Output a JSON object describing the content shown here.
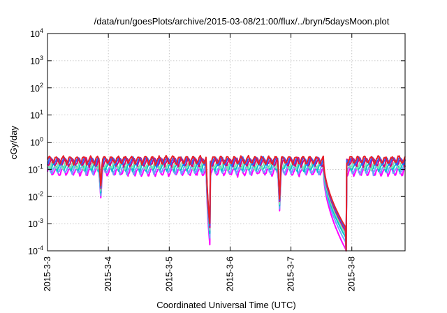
{
  "chart_data": {
    "type": "line",
    "title": "/data/run/goesPlots/archive/2015-03-08/21:00/flux/../bryn/5daysMoon.plot",
    "xlabel": "Coordinated Universal Time (UTC)",
    "ylabel": "cGy/day",
    "y_scale": "log",
    "ylim": [
      0.0001,
      10000
    ],
    "xlim": [
      "2015-03-03 00:00",
      "2015-03-08 21:00"
    ],
    "grid": true,
    "x_ticks": [
      "2015-3-3",
      "2015-3-4",
      "2015-3-5",
      "2015-3-6",
      "2015-3-7",
      "2015-3-8"
    ],
    "y_ticks": [
      {
        "base": "10",
        "exp": "-4"
      },
      {
        "base": "10",
        "exp": "-3"
      },
      {
        "base": "10",
        "exp": "-2"
      },
      {
        "base": "10",
        "exp": "-1"
      },
      {
        "base": "10",
        "exp": "0"
      },
      {
        "base": "10",
        "exp": "1"
      },
      {
        "base": "10",
        "exp": "2"
      },
      {
        "base": "10",
        "exp": "3"
      },
      {
        "base": "10",
        "exp": "4"
      }
    ],
    "series": [
      {
        "color": "#ff00ff",
        "base": 0.085,
        "floor": 0.00011,
        "dip_min": 0.009
      },
      {
        "color": "#6aa4ff",
        "base": 0.1,
        "floor": 0.0002,
        "dip_min": 0.015
      },
      {
        "color": "#00c8c8",
        "base": 0.13,
        "floor": 0.0003,
        "dip_min": 0.02
      },
      {
        "color": "#7fe0b0",
        "base": 0.15,
        "floor": 0.0004,
        "dip_min": 0.03
      },
      {
        "color": "#d8007a",
        "base": 0.19,
        "floor": 0.0005,
        "dip_min": 0.04
      },
      {
        "color": "#3060ff",
        "base": 0.21,
        "floor": 0.0006,
        "dip_min": 0.05
      },
      {
        "color": "#e8202a",
        "base": 0.23,
        "floor": 0.0007,
        "dip_min": 0.06
      }
    ],
    "events": {
      "dips": [
        {
          "center": "2015-03-03 21:00",
          "depth": 0.009
        },
        {
          "center": "2015-03-06 19:30",
          "depth": 0.003
        }
      ],
      "eclipses": [
        {
          "start": "2015-03-05 14:40",
          "bottom": "2015-03-05 16:10",
          "end": "2015-03-05 16:15"
        },
        {
          "start": "2015-03-07 12:50",
          "bottom": "2015-03-07 21:40",
          "end": "2015-03-07 21:50"
        }
      ]
    }
  }
}
